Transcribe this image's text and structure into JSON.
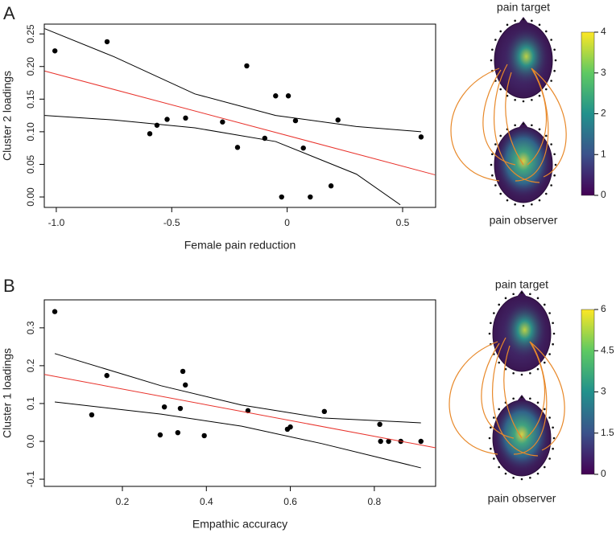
{
  "chart_data": [
    {
      "type": "scatter",
      "panel": "A",
      "xlabel": "Female pain reduction",
      "ylabel": "Cluster 2 loadings",
      "xlim": [
        -1.052,
        0.643
      ],
      "ylim": [
        -0.016,
        0.265
      ],
      "xticks": [
        {
          "value": -1.0,
          "label": "-1.0"
        },
        -0.5,
        0,
        0.5
      ],
      "yticks": [
        {
          "value": 0,
          "label": "0.00"
        },
        {
          "value": 0.05,
          "label": "0.05"
        },
        {
          "value": 0.1,
          "label": "0.10"
        },
        {
          "value": 0.15,
          "label": "0.15"
        },
        {
          "value": 0.2,
          "label": "0.20"
        },
        {
          "value": 0.25,
          "label": "0.25"
        }
      ],
      "series": [
        {
          "type": "scatter",
          "color": "#000000",
          "x": [
            -1.006,
            -0.78,
            -0.595,
            -0.564,
            -0.52,
            -0.44,
            -0.28,
            -0.215,
            -0.175,
            -0.097,
            -0.05,
            -0.024,
            0.005,
            0.036,
            0.07,
            0.1,
            0.19,
            0.22,
            0.58
          ],
          "values": [
            0.224,
            0.238,
            0.097,
            0.11,
            0.119,
            0.121,
            0.115,
            0.076,
            0.201,
            0.09,
            0.155,
            0,
            0.155,
            0.117,
            0.075,
            0,
            0.017,
            0.118,
            0.092
          ]
        },
        {
          "type": "line",
          "color": "#e8312a",
          "x": [
            -1.05,
            0.64
          ],
          "values": [
            0.193,
            0.034
          ]
        },
        {
          "type": "line",
          "color": "#000000",
          "x": [
            -1.05,
            -0.75,
            -0.4,
            -0.05,
            0.3,
            0.58
          ],
          "values": [
            0.258,
            0.215,
            0.158,
            0.125,
            0.108,
            0.1
          ]
        },
        {
          "type": "line",
          "color": "#000000",
          "x": [
            -1.05,
            -0.75,
            -0.4,
            -0.05,
            0.3,
            0.49
          ],
          "values": [
            0.125,
            0.118,
            0.106,
            0.085,
            0.035,
            -0.012
          ]
        }
      ],
      "head_top_label": "pain target",
      "head_bottom_label": "pain observer",
      "clim": [
        0,
        4
      ],
      "cticks": [
        0,
        1,
        2,
        3,
        4
      ]
    },
    {
      "type": "scatter",
      "panel": "B",
      "xlabel": "Empathic accuracy",
      "ylabel": "Cluster 1 loadings",
      "xlim": [
        0.014,
        0.946
      ],
      "ylim": [
        -0.119,
        0.374
      ],
      "xticks": [
        0.2,
        0.4,
        0.6,
        0.8
      ],
      "yticks": [
        -0.1,
        {
          "value": 0,
          "label": "0.0"
        },
        0.1,
        0.2,
        0.3
      ],
      "series": [
        {
          "type": "scatter",
          "color": "#000000",
          "x": [
            0.039,
            0.127,
            0.163,
            0.29,
            0.3,
            0.332,
            0.338,
            0.344,
            0.35,
            0.395,
            0.499,
            0.593,
            0.6,
            0.681,
            0.813,
            0.815,
            0.834,
            0.863,
            0.911
          ],
          "values": [
            0.343,
            0.07,
            0.174,
            0.017,
            0.091,
            0.023,
            0.087,
            0.185,
            0.149,
            0.015,
            0.081,
            0.032,
            0.038,
            0.079,
            0.045,
            0,
            0,
            0,
            0
          ]
        },
        {
          "type": "line",
          "color": "#e8312a",
          "x": [
            0.014,
            0.946
          ],
          "values": [
            0.177,
            -0.017
          ]
        },
        {
          "type": "line",
          "color": "#000000",
          "x": [
            0.039,
            0.292,
            0.484,
            0.675,
            0.911
          ],
          "values": [
            0.232,
            0.147,
            0.096,
            0.062,
            0.049
          ]
        },
        {
          "type": "line",
          "color": "#000000",
          "x": [
            0.039,
            0.292,
            0.484,
            0.675,
            0.911
          ],
          "values": [
            0.104,
            0.072,
            0.04,
            -0.006,
            -0.07
          ]
        }
      ],
      "head_top_label": "pain target",
      "head_bottom_label": "pain observer",
      "clim": [
        0,
        6
      ],
      "cticks": [
        0,
        1.5,
        3,
        4.5,
        6
      ]
    }
  ]
}
